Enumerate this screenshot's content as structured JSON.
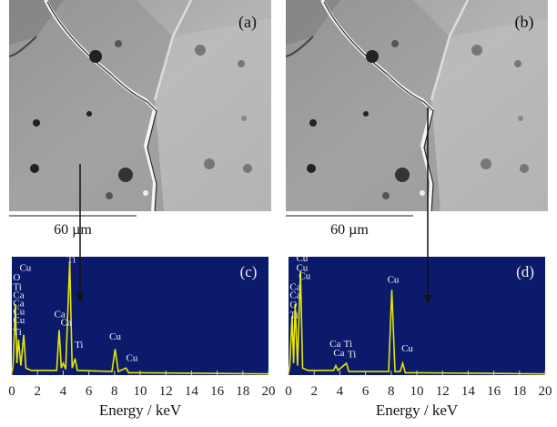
{
  "images": [
    {
      "label": "(a)",
      "scale_bar": "60 µm"
    },
    {
      "label": "(b)",
      "scale_bar": "60 µm"
    }
  ],
  "chart_data": [
    {
      "type": "line",
      "label": "(c)",
      "xlabel": "Energy / keV",
      "xlim": [
        0,
        20
      ],
      "xticks": [
        0,
        2,
        4,
        6,
        8,
        10,
        12,
        14,
        16,
        18,
        20
      ],
      "ylim": [
        0,
        100
      ],
      "color": "#e6e600",
      "background": "#0b1a6b",
      "x": [
        0,
        0.1,
        0.28,
        0.4,
        0.52,
        0.7,
        0.93,
        1.1,
        1.5,
        3.5,
        3.69,
        3.85,
        4.01,
        4.2,
        4.51,
        4.7,
        4.93,
        5.1,
        7.8,
        8.05,
        8.3,
        8.9,
        9.1,
        10,
        20
      ],
      "values": [
        2,
        8,
        60,
        10,
        30,
        8,
        34,
        6,
        4,
        4,
        38,
        6,
        10,
        5,
        96,
        6,
        14,
        4,
        3,
        22,
        3,
        6,
        2,
        2,
        1
      ],
      "peak_labels": [
        {
          "text": "Cu",
          "x": 0.6,
          "y": 88
        },
        {
          "text": "O",
          "x": 0.1,
          "y": 80
        },
        {
          "text": "Ti",
          "x": 0.1,
          "y": 72
        },
        {
          "text": "Ca",
          "x": 0.1,
          "y": 65
        },
        {
          "text": "Ca",
          "x": 0.1,
          "y": 58
        },
        {
          "text": "Cu",
          "x": 0.1,
          "y": 51
        },
        {
          "text": "Cu",
          "x": 0.1,
          "y": 44
        },
        {
          "text": "Ti",
          "x": 0.1,
          "y": 34
        },
        {
          "text": "Ti",
          "x": 4.3,
          "y": 95
        },
        {
          "text": "Ca",
          "x": 3.3,
          "y": 49
        },
        {
          "text": "Ca",
          "x": 3.8,
          "y": 42
        },
        {
          "text": "Ti",
          "x": 4.9,
          "y": 23
        },
        {
          "text": "Cu",
          "x": 7.6,
          "y": 30
        },
        {
          "text": "Cu",
          "x": 8.9,
          "y": 12
        }
      ]
    },
    {
      "type": "line",
      "label": "(d)",
      "xlabel": "Energy / keV",
      "xlim": [
        0,
        20
      ],
      "xticks": [
        0,
        2,
        4,
        6,
        8,
        10,
        12,
        14,
        16,
        18,
        20
      ],
      "ylim": [
        0,
        100
      ],
      "color": "#e6e600",
      "background": "#0b1a6b",
      "x": [
        0,
        0.1,
        0.28,
        0.4,
        0.52,
        0.7,
        0.93,
        1.1,
        1.5,
        3.5,
        3.69,
        3.85,
        4.51,
        4.7,
        7.8,
        8.05,
        8.3,
        8.7,
        8.9,
        9.1,
        10,
        20
      ],
      "values": [
        2,
        8,
        50,
        10,
        60,
        8,
        88,
        6,
        4,
        4,
        8,
        4,
        10,
        3,
        3,
        72,
        3,
        3,
        10,
        2,
        2,
        1
      ],
      "peak_labels": [
        {
          "text": "Cu",
          "x": 0.6,
          "y": 96
        },
        {
          "text": "Cu",
          "x": 0.6,
          "y": 88
        },
        {
          "text": "Cu",
          "x": 0.8,
          "y": 81
        },
        {
          "text": "Ca",
          "x": 0.1,
          "y": 72
        },
        {
          "text": "Ca",
          "x": 0.1,
          "y": 65
        },
        {
          "text": "O",
          "x": 0.1,
          "y": 57
        },
        {
          "text": "Ti",
          "x": 0.1,
          "y": 48
        },
        {
          "text": "Ca",
          "x": 3.2,
          "y": 24
        },
        {
          "text": "Ti",
          "x": 4.3,
          "y": 24
        },
        {
          "text": "Ca",
          "x": 3.5,
          "y": 16
        },
        {
          "text": "Ti",
          "x": 4.6,
          "y": 15
        },
        {
          "text": "Cu",
          "x": 7.7,
          "y": 78
        },
        {
          "text": "Cu",
          "x": 8.8,
          "y": 20
        }
      ]
    }
  ]
}
